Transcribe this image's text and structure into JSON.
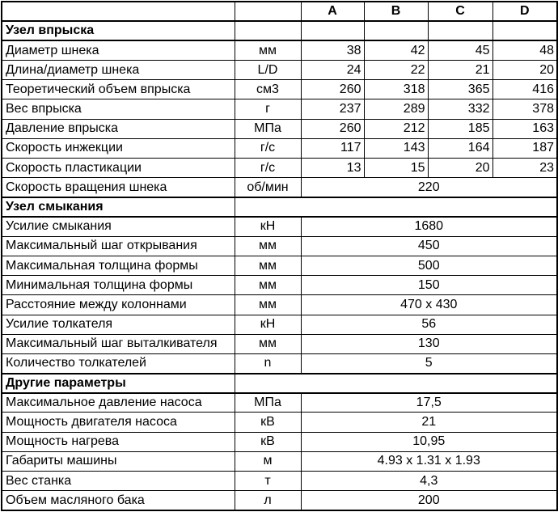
{
  "header": {
    "param": "",
    "unit": "",
    "models": [
      "A",
      "B",
      "C",
      "D"
    ]
  },
  "sections": [
    {
      "title": "Узел впрыска",
      "title_row_split": true,
      "rows": [
        {
          "param": "Диаметр шнека",
          "unit": "мм",
          "values": [
            "38",
            "42",
            "45",
            "48"
          ]
        },
        {
          "param": "Длина/диаметр шнека",
          "unit": "L/D",
          "values": [
            "24",
            "22",
            "21",
            "20"
          ]
        },
        {
          "param": "Теоретический объем впрыска",
          "unit": "см3",
          "values": [
            "260",
            "318",
            "365",
            "416"
          ]
        },
        {
          "param": "Вес впрыска",
          "unit": "г",
          "values": [
            "237",
            "289",
            "332",
            "378"
          ]
        },
        {
          "param": "Давление впрыска",
          "unit": "МПа",
          "values": [
            "260",
            "212",
            "185",
            "163"
          ]
        },
        {
          "param": "Скорость инжекции",
          "unit": "г/с",
          "values": [
            "117",
            "143",
            "164",
            "187"
          ]
        },
        {
          "param": "Скорость пластикации",
          "unit": "г/с",
          "values": [
            "13",
            "15",
            "20",
            "23"
          ]
        },
        {
          "param": "Скорость вращения шнека",
          "unit": "об/мин",
          "merged_value": "220"
        }
      ]
    },
    {
      "title": "Узел смыкания",
      "title_row_split": false,
      "rows": [
        {
          "param": "Усилие смыкания",
          "unit": "кН",
          "merged_value": "1680"
        },
        {
          "param": "Максимальный шаг открывания",
          "unit": "мм",
          "merged_value": "450"
        },
        {
          "param": "Максимальная толщина формы",
          "unit": "мм",
          "merged_value": "500"
        },
        {
          "param": "Минимальная толщина формы",
          "unit": "мм",
          "merged_value": "150"
        },
        {
          "param": "Расстояние между колоннами",
          "unit": "мм",
          "merged_value": "470 x 430"
        },
        {
          "param": "Усилие толкателя",
          "unit": "кН",
          "merged_value": "56"
        },
        {
          "param": "Максимальный шаг выталкивателя",
          "unit": "мм",
          "merged_value": "130"
        },
        {
          "param": "Количество толкателей",
          "unit": "n",
          "merged_value": "5"
        }
      ]
    },
    {
      "title": "Другие параметры",
      "title_row_split": false,
      "rows": [
        {
          "param": "Максимальное давление насоса",
          "unit": "МПа",
          "merged_value": "17,5"
        },
        {
          "param": "Мощность двигателя насоса",
          "unit": "кВ",
          "merged_value": "21"
        },
        {
          "param": "Мощность нагрева",
          "unit": "кВ",
          "merged_value": "10,95"
        },
        {
          "param": "Габариты машины",
          "unit": "м",
          "merged_value": "4.93 x 1.31 x 1.93"
        },
        {
          "param": "Вес станка",
          "unit": "т",
          "merged_value": "4,3"
        },
        {
          "param": "Объем масляного бака",
          "unit": "л",
          "merged_value": "200"
        }
      ]
    }
  ],
  "colors": {
    "border": "#000000",
    "text": "#000000",
    "background": "#ffffff"
  }
}
